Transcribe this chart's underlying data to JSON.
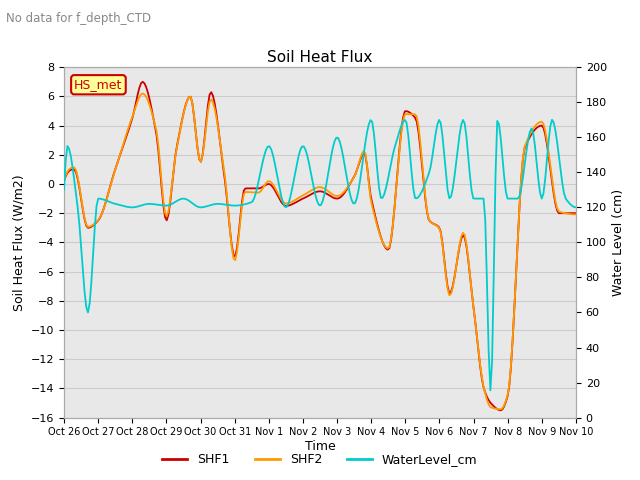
{
  "title": "Soil Heat Flux",
  "suptitle": "No data for f_depth_CTD",
  "ylabel_left": "Soil Heat Flux (W/m2)",
  "ylabel_right": "Water Level (cm)",
  "xlabel": "Time",
  "ylim_left": [
    -16,
    8
  ],
  "ylim_right": [
    0,
    200
  ],
  "yticks_left": [
    -16,
    -14,
    -12,
    -10,
    -8,
    -6,
    -4,
    -2,
    0,
    2,
    4,
    6,
    8
  ],
  "yticks_right": [
    0,
    20,
    40,
    60,
    80,
    100,
    120,
    140,
    160,
    180,
    200
  ],
  "xtick_labels": [
    "Oct 26",
    "Oct 27",
    "Oct 28",
    "Oct 29",
    "Oct 30",
    "Oct 31",
    "Nov 1",
    "Nov 2",
    "Nov 3",
    "Nov 4",
    "Nov 5",
    "Nov 6",
    "Nov 7",
    "Nov 8",
    "Nov 9",
    "Nov 10"
  ],
  "color_shf1": "#cc0000",
  "color_shf2": "#ff9900",
  "color_wl": "#00cccc",
  "color_grid": "#cccccc",
  "color_bg": "#e8e8e8",
  "color_hs_box": "#ffff99",
  "color_hs_border": "#cc0000",
  "hs_label": "HS_met",
  "legend_entries": [
    "SHF1",
    "SHF2",
    "WaterLevel_cm"
  ],
  "line_width": 1.3,
  "figsize": [
    6.4,
    4.8
  ],
  "dpi": 100
}
